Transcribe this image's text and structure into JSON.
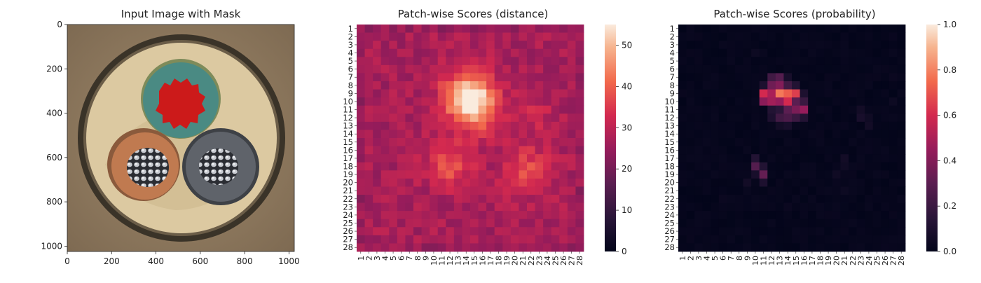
{
  "chart_data": [
    {
      "type": "image",
      "title": "Input Image with Mask",
      "x_ticks": [
        "0",
        "200",
        "400",
        "600",
        "800",
        "1000"
      ],
      "y_ticks": [
        "0",
        "200",
        "400",
        "600",
        "800",
        "1000"
      ],
      "xlim": [
        0,
        1024
      ],
      "ylim": [
        0,
        1024
      ],
      "colors": {
        "background": "#8f7b62",
        "outer_ring": "#4a4132",
        "insulation": "#dcc9a1",
        "teal_core": "#4a8a83",
        "orange_core": "#c07a50",
        "grey_core": "#5f636a",
        "mask": "#cc1a1a"
      }
    },
    {
      "type": "heatmap",
      "title": "Patch-wise Scores (distance)",
      "x_ticks": [
        "1",
        "2",
        "3",
        "4",
        "5",
        "6",
        "7",
        "8",
        "9",
        "10",
        "11",
        "12",
        "13",
        "14",
        "15",
        "16",
        "17",
        "18",
        "19",
        "20",
        "21",
        "22",
        "23",
        "24",
        "25",
        "26",
        "27",
        "28"
      ],
      "y_ticks": [
        "1",
        "2",
        "3",
        "4",
        "5",
        "6",
        "7",
        "8",
        "9",
        "10",
        "11",
        "12",
        "13",
        "14",
        "15",
        "16",
        "17",
        "18",
        "19",
        "20",
        "21",
        "22",
        "23",
        "24",
        "25",
        "26",
        "27",
        "28"
      ],
      "colorbar": {
        "min": 0,
        "max": 55,
        "ticks": [
          "0",
          "10",
          "20",
          "30",
          "40",
          "50"
        ]
      },
      "background_level": 27,
      "blobs": [
        {
          "cx": 14.3,
          "cy": 9.3,
          "sigma": 2.1,
          "amp": 28
        },
        {
          "cx": 15.0,
          "cy": 11.5,
          "sigma": 2.0,
          "amp": 10
        },
        {
          "cx": 12.0,
          "cy": 18.0,
          "sigma": 1.9,
          "amp": 12
        },
        {
          "cx": 21.5,
          "cy": 18.5,
          "sigma": 2.0,
          "amp": 11
        },
        {
          "cx": 22.0,
          "cy": 11.5,
          "sigma": 1.8,
          "amp": 5
        }
      ]
    },
    {
      "type": "heatmap",
      "title": "Patch-wise Scores (probability)",
      "x_ticks": [
        "1",
        "2",
        "3",
        "4",
        "5",
        "6",
        "7",
        "8",
        "9",
        "10",
        "11",
        "12",
        "13",
        "14",
        "15",
        "16",
        "17",
        "18",
        "19",
        "20",
        "21",
        "22",
        "23",
        "24",
        "25",
        "26",
        "27",
        "28"
      ],
      "y_ticks": [
        "1",
        "2",
        "3",
        "4",
        "5",
        "6",
        "7",
        "8",
        "9",
        "10",
        "11",
        "12",
        "13",
        "14",
        "15",
        "16",
        "17",
        "18",
        "19",
        "20",
        "21",
        "22",
        "23",
        "24",
        "25",
        "26",
        "27",
        "28"
      ],
      "colorbar": {
        "min": 0,
        "max": 1.0,
        "ticks": [
          "0.0",
          "0.2",
          "0.4",
          "0.6",
          "0.8",
          "1.0"
        ]
      },
      "cells": [
        {
          "r": 7,
          "c": 12,
          "v": 0.22
        },
        {
          "r": 7,
          "c": 13,
          "v": 0.28
        },
        {
          "r": 7,
          "c": 14,
          "v": 0.08
        },
        {
          "r": 8,
          "c": 11,
          "v": 0.1
        },
        {
          "r": 8,
          "c": 12,
          "v": 0.35
        },
        {
          "r": 8,
          "c": 13,
          "v": 0.4
        },
        {
          "r": 8,
          "c": 14,
          "v": 0.22
        },
        {
          "r": 8,
          "c": 15,
          "v": 0.12
        },
        {
          "r": 9,
          "c": 11,
          "v": 0.6
        },
        {
          "r": 9,
          "c": 12,
          "v": 0.5
        },
        {
          "r": 9,
          "c": 13,
          "v": 0.78
        },
        {
          "r": 9,
          "c": 14,
          "v": 0.72
        },
        {
          "r": 9,
          "c": 15,
          "v": 0.65
        },
        {
          "r": 9,
          "c": 16,
          "v": 0.1
        },
        {
          "r": 10,
          "c": 11,
          "v": 0.42
        },
        {
          "r": 10,
          "c": 12,
          "v": 0.48
        },
        {
          "r": 10,
          "c": 13,
          "v": 0.45
        },
        {
          "r": 10,
          "c": 14,
          "v": 0.6
        },
        {
          "r": 10,
          "c": 15,
          "v": 0.3
        },
        {
          "r": 10,
          "c": 16,
          "v": 0.2
        },
        {
          "r": 11,
          "c": 12,
          "v": 0.12
        },
        {
          "r": 11,
          "c": 13,
          "v": 0.15
        },
        {
          "r": 11,
          "c": 14,
          "v": 0.3
        },
        {
          "r": 11,
          "c": 15,
          "v": 0.38
        },
        {
          "r": 11,
          "c": 16,
          "v": 0.45
        },
        {
          "r": 12,
          "c": 12,
          "v": 0.1
        },
        {
          "r": 12,
          "c": 13,
          "v": 0.22
        },
        {
          "r": 12,
          "c": 14,
          "v": 0.25
        },
        {
          "r": 12,
          "c": 15,
          "v": 0.2
        },
        {
          "r": 12,
          "c": 16,
          "v": 0.12
        },
        {
          "r": 13,
          "c": 13,
          "v": 0.06
        },
        {
          "r": 13,
          "c": 14,
          "v": 0.08
        },
        {
          "r": 11,
          "c": 23,
          "v": 0.06
        },
        {
          "r": 12,
          "c": 23,
          "v": 0.08
        },
        {
          "r": 12,
          "c": 24,
          "v": 0.05
        },
        {
          "r": 13,
          "c": 24,
          "v": 0.06
        },
        {
          "r": 17,
          "c": 10,
          "v": 0.12
        },
        {
          "r": 18,
          "c": 10,
          "v": 0.28
        },
        {
          "r": 18,
          "c": 11,
          "v": 0.12
        },
        {
          "r": 19,
          "c": 11,
          "v": 0.32
        },
        {
          "r": 19,
          "c": 10,
          "v": 0.08
        },
        {
          "r": 20,
          "c": 11,
          "v": 0.1
        },
        {
          "r": 20,
          "c": 9,
          "v": 0.06
        },
        {
          "r": 17,
          "c": 21,
          "v": 0.06
        },
        {
          "r": 18,
          "c": 21,
          "v": 0.05
        },
        {
          "r": 19,
          "c": 20,
          "v": 0.05
        },
        {
          "r": 21,
          "c": 21,
          "v": 0.04
        },
        {
          "r": 4,
          "c": 10,
          "v": 0.04
        },
        {
          "r": 23,
          "c": 14,
          "v": 0.03
        },
        {
          "r": 10,
          "c": 27,
          "v": 0.04
        },
        {
          "r": 7,
          "c": 27,
          "v": 0.03
        },
        {
          "r": 22,
          "c": 6,
          "v": 0.03
        }
      ]
    }
  ]
}
